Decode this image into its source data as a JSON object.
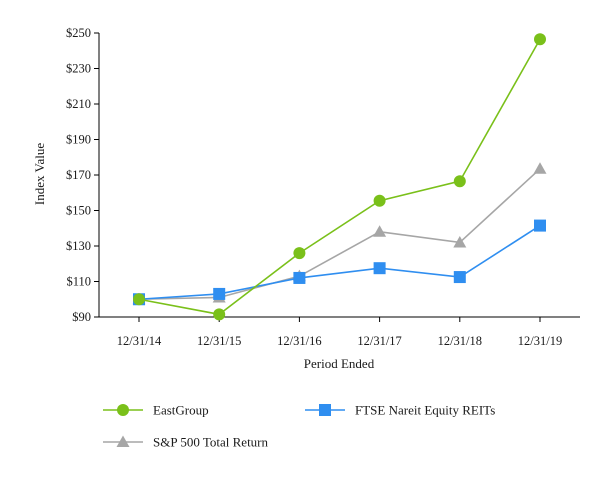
{
  "chart_data": {
    "type": "line",
    "xlabel": "Period Ended",
    "ylabel": "Index Value",
    "categories": [
      "12/31/14",
      "12/31/15",
      "12/31/16",
      "12/31/17",
      "12/31/18",
      "12/31/19"
    ],
    "ylim": [
      90,
      250
    ],
    "yticks": [
      90,
      110,
      130,
      150,
      170,
      190,
      210,
      230,
      250
    ],
    "ytick_labels": [
      "$90",
      "$110",
      "$130",
      "$150",
      "$170",
      "$190",
      "$210",
      "$230",
      "$250"
    ],
    "grid": false,
    "legend_position": "bottom",
    "series": [
      {
        "name": "EastGroup",
        "marker": "circle",
        "color": "#7ac01a",
        "values": [
          100,
          91.5,
          126,
          155.5,
          166.5,
          246.5
        ]
      },
      {
        "name": "FTSE Nareit Equity REITs",
        "marker": "square",
        "color": "#2f8ef0",
        "values": [
          100,
          103,
          112,
          117.5,
          112.5,
          141.5
        ]
      },
      {
        "name": "S&P 500 Total Return",
        "marker": "triangle",
        "color": "#a6a6a6",
        "values": [
          100,
          101,
          113,
          138,
          132,
          173.5
        ]
      }
    ]
  }
}
